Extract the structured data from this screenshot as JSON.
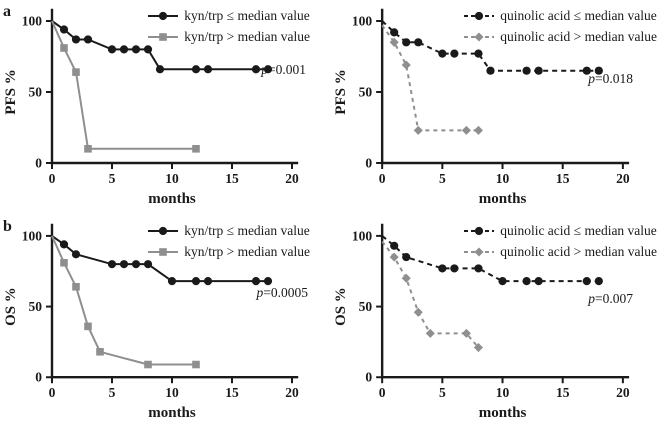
{
  "figure": {
    "panel_letters": [
      "a",
      "b"
    ],
    "colors": {
      "series_black": "#1a1a1a",
      "series_gray": "#8f8f8f",
      "axis": "#1a1a1a"
    }
  },
  "chart_data": [
    {
      "id": "pfs-kyn-trp",
      "type": "line",
      "title": "",
      "xlabel": "months",
      "ylabel": "PFS %",
      "xlim": [
        0,
        20
      ],
      "ylim": [
        0,
        100
      ],
      "xticks": [
        0,
        5,
        10,
        15,
        20
      ],
      "yticks": [
        0,
        50,
        100
      ],
      "grid": false,
      "legend_position": "top-right",
      "p_value": {
        "symbol": "p",
        "text": "=0.001"
      },
      "series": [
        {
          "name": "kyn/trp ≤ median value",
          "color": "#1a1a1a",
          "marker": "circle",
          "line_style": "solid",
          "points": [
            [
              0,
              100
            ],
            [
              1,
              94
            ],
            [
              2,
              87
            ],
            [
              3,
              87
            ],
            [
              5,
              80
            ],
            [
              6,
              80
            ],
            [
              7,
              80
            ],
            [
              8,
              80
            ],
            [
              9,
              66
            ],
            [
              12,
              66
            ],
            [
              13,
              66
            ],
            [
              17,
              66
            ],
            [
              18,
              66
            ]
          ]
        },
        {
          "name": "kyn/trp > median value",
          "color": "#8f8f8f",
          "marker": "square",
          "line_style": "solid",
          "points": [
            [
              0,
              100
            ],
            [
              1,
              81
            ],
            [
              2,
              64
            ],
            [
              3,
              10
            ],
            [
              12,
              10
            ]
          ]
        }
      ]
    },
    {
      "id": "pfs-quinolic-acid",
      "type": "line",
      "title": "",
      "xlabel": "months",
      "ylabel": "PFS %",
      "xlim": [
        0,
        20
      ],
      "ylim": [
        0,
        100
      ],
      "xticks": [
        0,
        5,
        10,
        15,
        20
      ],
      "yticks": [
        0,
        50,
        100
      ],
      "grid": false,
      "legend_position": "top-right",
      "p_value": {
        "symbol": "p",
        "text": "=0.018"
      },
      "series": [
        {
          "name": "quinolic acid ≤ median value",
          "color": "#1a1a1a",
          "marker": "circle",
          "line_style": "dashed",
          "points": [
            [
              0,
              100
            ],
            [
              1,
              92
            ],
            [
              2,
              85
            ],
            [
              3,
              85
            ],
            [
              5,
              77
            ],
            [
              6,
              77
            ],
            [
              8,
              77
            ],
            [
              9,
              65
            ],
            [
              12,
              65
            ],
            [
              13,
              65
            ],
            [
              17,
              65
            ],
            [
              18,
              65
            ]
          ]
        },
        {
          "name": "quinolic acid > median value",
          "color": "#8f8f8f",
          "marker": "diamond",
          "line_style": "dashed",
          "points": [
            [
              0,
              97
            ],
            [
              1,
              85
            ],
            [
              2,
              69
            ],
            [
              3,
              23
            ],
            [
              7,
              23
            ],
            [
              8,
              23
            ]
          ]
        }
      ]
    },
    {
      "id": "os-kyn-trp",
      "type": "line",
      "title": "",
      "xlabel": "months",
      "ylabel": "OS %",
      "xlim": [
        0,
        20
      ],
      "ylim": [
        0,
        100
      ],
      "xticks": [
        0,
        5,
        10,
        15,
        20
      ],
      "yticks": [
        0,
        50,
        100
      ],
      "grid": false,
      "legend_position": "top-right",
      "p_value": {
        "symbol": "p",
        "text": "=0.0005"
      },
      "series": [
        {
          "name": "kyn/trp ≤ median value",
          "color": "#1a1a1a",
          "marker": "circle",
          "line_style": "solid",
          "points": [
            [
              0,
              100
            ],
            [
              1,
              94
            ],
            [
              2,
              87
            ],
            [
              5,
              80
            ],
            [
              6,
              80
            ],
            [
              7,
              80
            ],
            [
              8,
              80
            ],
            [
              10,
              68
            ],
            [
              12,
              68
            ],
            [
              13,
              68
            ],
            [
              17,
              68
            ],
            [
              18,
              68
            ]
          ]
        },
        {
          "name": "kyn/trp > median value",
          "color": "#8f8f8f",
          "marker": "square",
          "line_style": "solid",
          "points": [
            [
              0,
              100
            ],
            [
              1,
              81
            ],
            [
              2,
              64
            ],
            [
              3,
              36
            ],
            [
              4,
              18
            ],
            [
              8,
              9
            ],
            [
              12,
              9
            ]
          ]
        }
      ]
    },
    {
      "id": "os-quinolic-acid",
      "type": "line",
      "title": "",
      "xlabel": "months",
      "ylabel": "OS %",
      "xlim": [
        0,
        20
      ],
      "ylim": [
        0,
        100
      ],
      "xticks": [
        0,
        5,
        10,
        15,
        20
      ],
      "yticks": [
        0,
        50,
        100
      ],
      "grid": false,
      "legend_position": "top-right",
      "p_value": {
        "symbol": "p",
        "text": "=0.007"
      },
      "series": [
        {
          "name": "quinolic acid ≤ median value",
          "color": "#1a1a1a",
          "marker": "circle",
          "line_style": "dashed",
          "points": [
            [
              0,
              100
            ],
            [
              1,
              93
            ],
            [
              2,
              85
            ],
            [
              5,
              77
            ],
            [
              6,
              77
            ],
            [
              8,
              77
            ],
            [
              10,
              68
            ],
            [
              12,
              68
            ],
            [
              13,
              68
            ],
            [
              17,
              68
            ],
            [
              18,
              68
            ]
          ]
        },
        {
          "name": "quinolic acid > median value",
          "color": "#8f8f8f",
          "marker": "diamond",
          "line_style": "dashed",
          "points": [
            [
              0,
              96
            ],
            [
              1,
              85
            ],
            [
              2,
              70
            ],
            [
              3,
              46
            ],
            [
              4,
              31
            ],
            [
              7,
              31
            ],
            [
              8,
              21
            ]
          ]
        }
      ]
    }
  ]
}
